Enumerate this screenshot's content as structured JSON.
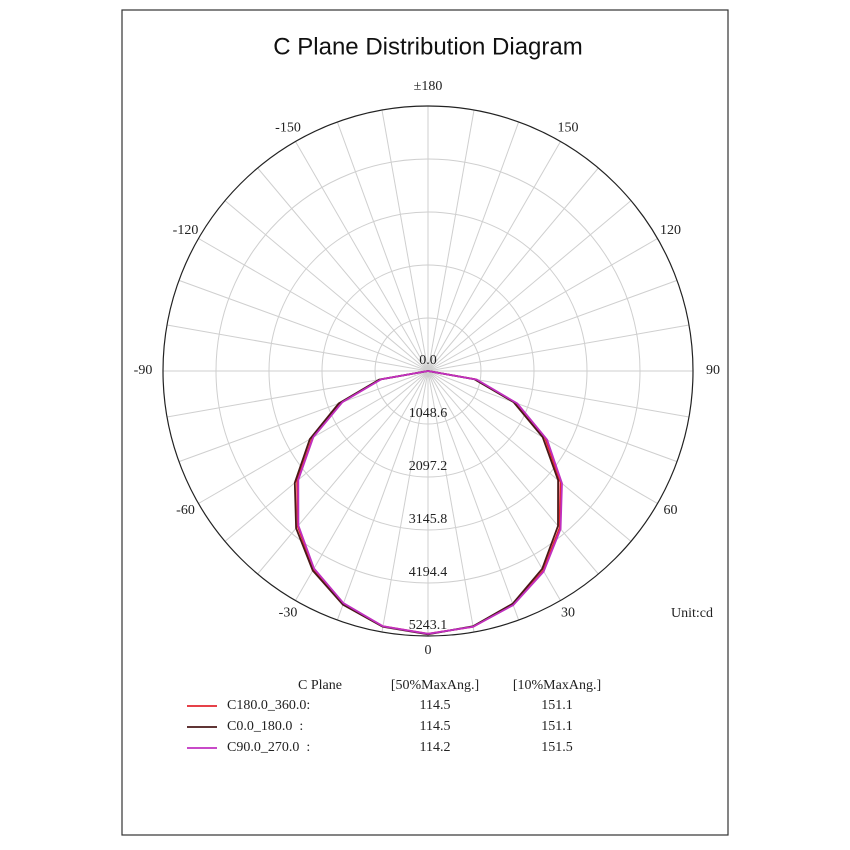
{
  "chart_data": {
    "type": "polar",
    "title": "C Plane Distribution Diagram",
    "unit_label": "Unit:cd",
    "theta": [
      -90,
      -80,
      -70,
      -60,
      -50,
      -40,
      -30,
      -20,
      -10,
      0,
      10,
      20,
      30,
      40,
      50,
      60,
      70,
      80,
      90
    ],
    "rlim": [
      0,
      5243.1
    ],
    "rticks": [
      {
        "value": 0,
        "label": "0.0"
      },
      1048.6,
      2097.2,
      3145.8,
      4194.4,
      5243.1
    ],
    "thetaticks": [
      {
        "value": 180,
        "label": "±180"
      },
      150,
      120,
      90,
      60,
      30,
      0,
      -30,
      -60,
      -90,
      -120,
      -150
    ],
    "theta_grid_step": 10,
    "grid": true,
    "table_header": [
      "C Plane",
      "[50%MaxAng.]",
      "[10%MaxAng.]"
    ],
    "series": [
      {
        "name": "C180.0_360.0:",
        "color": "#e3262f",
        "values": [
          0,
          950,
          1820,
          2640,
          3380,
          4010,
          4530,
          4900,
          5130,
          5200,
          5140,
          4920,
          4560,
          4050,
          3420,
          2680,
          1850,
          960,
          0
        ],
        "max_angle_50": "114.5",
        "max_angle_10": "151.1"
      },
      {
        "name": "C0.0_180.0  :",
        "color": "#4a1818",
        "values": [
          0,
          980,
          1880,
          2700,
          3440,
          4060,
          4560,
          4920,
          5140,
          5210,
          5130,
          4900,
          4520,
          4000,
          3360,
          2620,
          1800,
          930,
          0
        ],
        "max_angle_50": "114.5",
        "max_angle_10": "151.1"
      },
      {
        "name": "C90.0_270.0  :",
        "color": "#c030c0",
        "values": [
          0,
          940,
          1800,
          2620,
          3350,
          3990,
          4510,
          4890,
          5130,
          5200,
          5140,
          4930,
          4580,
          4080,
          3460,
          2720,
          1880,
          980,
          0
        ],
        "max_angle_50": "114.2",
        "max_angle_10": "151.5"
      }
    ]
  }
}
